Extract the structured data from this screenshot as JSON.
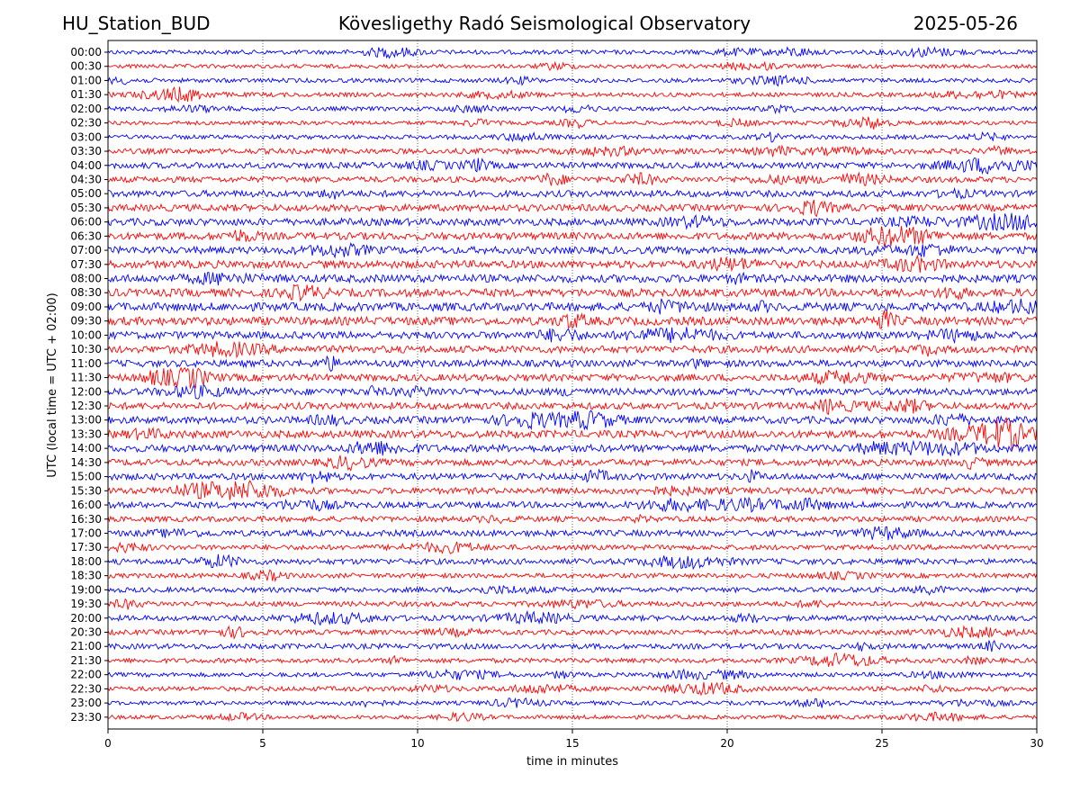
{
  "header": {
    "station": "HU_Station_BUD",
    "observatory": "Kövesligethy Radó Seismological Observatory",
    "date": "2025-05-26"
  },
  "chart_data": {
    "type": "line",
    "title": "Kövesligethy Radó Seismological Observatory",
    "xlabel": "time in minutes",
    "ylabel": "UTC (local time = UTC + 02:00)",
    "xlim": [
      0,
      30
    ],
    "x_ticks": [
      0,
      5,
      10,
      15,
      20,
      25,
      30
    ],
    "grid": "vertical dotted at each 5 minutes",
    "rows": [
      "00:00",
      "00:30",
      "01:00",
      "01:30",
      "02:00",
      "02:30",
      "03:00",
      "03:30",
      "04:00",
      "04:30",
      "05:00",
      "05:30",
      "06:00",
      "06:30",
      "07:00",
      "07:30",
      "08:00",
      "08:30",
      "09:00",
      "09:30",
      "10:00",
      "10:30",
      "11:00",
      "11:30",
      "12:00",
      "12:30",
      "13:00",
      "13:30",
      "14:00",
      "14:30",
      "15:00",
      "15:30",
      "16:00",
      "16:30",
      "17:00",
      "17:30",
      "18:00",
      "18:30",
      "19:00",
      "19:30",
      "20:00",
      "20:30",
      "21:00",
      "21:30",
      "22:00",
      "22:30",
      "23:00",
      "23:30"
    ],
    "colors": [
      "#0000ff",
      "#ff0000"
    ],
    "row_activity": [
      0.3,
      0.25,
      0.3,
      0.3,
      0.3,
      0.25,
      0.3,
      0.45,
      0.55,
      0.5,
      0.6,
      0.65,
      0.7,
      0.7,
      0.7,
      0.75,
      0.8,
      0.8,
      0.85,
      0.85,
      0.7,
      0.7,
      0.65,
      0.65,
      0.65,
      0.65,
      0.7,
      0.75,
      0.7,
      0.6,
      0.6,
      0.55,
      0.55,
      0.45,
      0.55,
      0.4,
      0.5,
      0.35,
      0.4,
      0.4,
      0.45,
      0.4,
      0.45,
      0.35,
      0.3,
      0.35,
      0.25,
      0.25
    ]
  }
}
